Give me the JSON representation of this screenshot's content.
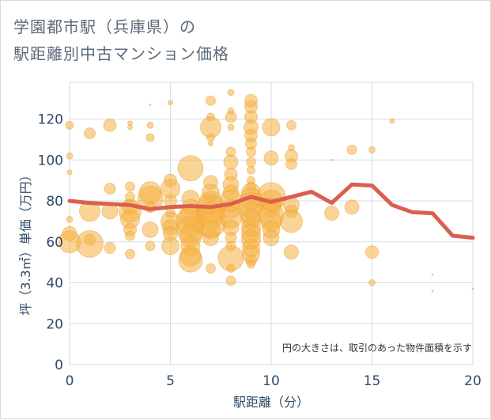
{
  "title": "学園都市駅（兵庫県）の\n駅距離別中古マンション価格",
  "colors": {
    "bubble_fill": "#f5b041",
    "bubble_stroke": "#e8a33a",
    "line": "#d9604f",
    "grid": "#d5dde6",
    "tick_text": "#2f4a66"
  },
  "chart_data": {
    "type": "scatter",
    "xlabel": "駅距離（分）",
    "ylabel": "坪（3.3㎡）単価（万円）",
    "xlim": [
      0,
      20
    ],
    "ylim": [
      0,
      138
    ],
    "xticks": [
      0,
      5,
      10,
      15,
      20
    ],
    "yticks": [
      0,
      20,
      40,
      60,
      80,
      100,
      120
    ],
    "grid": true,
    "note": "円の大きさは、取引のあった物件面積を示す",
    "bubbles": [
      {
        "x": 0,
        "y": 117,
        "r": 5
      },
      {
        "x": 0,
        "y": 102,
        "r": 4
      },
      {
        "x": 0,
        "y": 94,
        "r": 3
      },
      {
        "x": 0,
        "y": 71,
        "r": 4
      },
      {
        "x": 0,
        "y": 64,
        "r": 9
      },
      {
        "x": 0,
        "y": 60,
        "r": 14
      },
      {
        "x": 1,
        "y": 113,
        "r": 7
      },
      {
        "x": 1,
        "y": 75,
        "r": 13
      },
      {
        "x": 1,
        "y": 61,
        "r": 7
      },
      {
        "x": 1,
        "y": 59,
        "r": 17
      },
      {
        "x": 2,
        "y": 117,
        "r": 8
      },
      {
        "x": 2,
        "y": 86,
        "r": 7
      },
      {
        "x": 2,
        "y": 75,
        "r": 10
      },
      {
        "x": 2,
        "y": 57,
        "r": 7
      },
      {
        "x": 3,
        "y": 118,
        "r": 3
      },
      {
        "x": 3,
        "y": 116,
        "r": 3
      },
      {
        "x": 3,
        "y": 87,
        "r": 6
      },
      {
        "x": 3,
        "y": 82,
        "r": 6
      },
      {
        "x": 3,
        "y": 77,
        "r": 10
      },
      {
        "x": 3,
        "y": 75,
        "r": 14
      },
      {
        "x": 3,
        "y": 71,
        "r": 12
      },
      {
        "x": 3,
        "y": 66,
        "r": 8
      },
      {
        "x": 3,
        "y": 63,
        "r": 6
      },
      {
        "x": 3,
        "y": 54,
        "r": 6
      },
      {
        "x": 4,
        "y": 127,
        "r": 1
      },
      {
        "x": 4,
        "y": 117,
        "r": 4
      },
      {
        "x": 4,
        "y": 111,
        "r": 5
      },
      {
        "x": 4,
        "y": 84,
        "r": 14
      },
      {
        "x": 4,
        "y": 81,
        "r": 16
      },
      {
        "x": 4,
        "y": 77,
        "r": 7
      },
      {
        "x": 4,
        "y": 66,
        "r": 10
      },
      {
        "x": 4,
        "y": 58,
        "r": 6
      },
      {
        "x": 5,
        "y": 128,
        "r": 3
      },
      {
        "x": 5,
        "y": 90,
        "r": 8
      },
      {
        "x": 5,
        "y": 86,
        "r": 12
      },
      {
        "x": 5,
        "y": 80,
        "r": 8
      },
      {
        "x": 5,
        "y": 74,
        "r": 6
      },
      {
        "x": 5,
        "y": 70,
        "r": 12
      },
      {
        "x": 5,
        "y": 67,
        "r": 10
      },
      {
        "x": 5,
        "y": 64,
        "r": 9
      },
      {
        "x": 5,
        "y": 58,
        "r": 11
      },
      {
        "x": 6,
        "y": 96,
        "r": 16
      },
      {
        "x": 6,
        "y": 81,
        "r": 11
      },
      {
        "x": 6,
        "y": 77,
        "r": 10
      },
      {
        "x": 6,
        "y": 73,
        "r": 14
      },
      {
        "x": 6,
        "y": 70,
        "r": 18
      },
      {
        "x": 6,
        "y": 66,
        "r": 17
      },
      {
        "x": 6,
        "y": 63,
        "r": 14
      },
      {
        "x": 6,
        "y": 58,
        "r": 12
      },
      {
        "x": 6,
        "y": 53,
        "r": 13
      },
      {
        "x": 6,
        "y": 51,
        "r": 15
      },
      {
        "x": 7,
        "y": 129,
        "r": 6
      },
      {
        "x": 7,
        "y": 121,
        "r": 5
      },
      {
        "x": 7,
        "y": 116,
        "r": 13
      },
      {
        "x": 7,
        "y": 111,
        "r": 5
      },
      {
        "x": 7,
        "y": 108,
        "r": 3
      },
      {
        "x": 7,
        "y": 89,
        "r": 9
      },
      {
        "x": 7,
        "y": 84,
        "r": 11
      },
      {
        "x": 7,
        "y": 79,
        "r": 15
      },
      {
        "x": 7,
        "y": 76,
        "r": 18
      },
      {
        "x": 7,
        "y": 73,
        "r": 17
      },
      {
        "x": 7,
        "y": 70,
        "r": 20
      },
      {
        "x": 7,
        "y": 66,
        "r": 12
      },
      {
        "x": 7,
        "y": 62,
        "r": 10
      },
      {
        "x": 7,
        "y": 47,
        "r": 6
      },
      {
        "x": 8,
        "y": 133,
        "r": 4
      },
      {
        "x": 8,
        "y": 124,
        "r": 4
      },
      {
        "x": 8,
        "y": 121,
        "r": 7
      },
      {
        "x": 8,
        "y": 116,
        "r": 4
      },
      {
        "x": 8,
        "y": 104,
        "r": 6
      },
      {
        "x": 8,
        "y": 99,
        "r": 9
      },
      {
        "x": 8,
        "y": 93,
        "r": 8
      },
      {
        "x": 8,
        "y": 88,
        "r": 10
      },
      {
        "x": 8,
        "y": 84,
        "r": 10
      },
      {
        "x": 8,
        "y": 80,
        "r": 14
      },
      {
        "x": 8,
        "y": 76,
        "r": 12
      },
      {
        "x": 8,
        "y": 72,
        "r": 14
      },
      {
        "x": 8,
        "y": 67,
        "r": 10
      },
      {
        "x": 8,
        "y": 62,
        "r": 7
      },
      {
        "x": 8,
        "y": 58,
        "r": 6
      },
      {
        "x": 8,
        "y": 52,
        "r": 16
      },
      {
        "x": 8,
        "y": 47,
        "r": 5
      },
      {
        "x": 8,
        "y": 41,
        "r": 6
      },
      {
        "x": 9,
        "y": 129,
        "r": 8
      },
      {
        "x": 9,
        "y": 126,
        "r": 8
      },
      {
        "x": 9,
        "y": 121,
        "r": 8
      },
      {
        "x": 9,
        "y": 116,
        "r": 9
      },
      {
        "x": 9,
        "y": 112,
        "r": 8
      },
      {
        "x": 9,
        "y": 108,
        "r": 7
      },
      {
        "x": 9,
        "y": 104,
        "r": 6
      },
      {
        "x": 9,
        "y": 99,
        "r": 6
      },
      {
        "x": 9,
        "y": 95,
        "r": 5
      },
      {
        "x": 9,
        "y": 90,
        "r": 5
      },
      {
        "x": 9,
        "y": 87,
        "r": 6
      },
      {
        "x": 9,
        "y": 84,
        "r": 12
      },
      {
        "x": 9,
        "y": 81,
        "r": 14
      },
      {
        "x": 9,
        "y": 78,
        "r": 16
      },
      {
        "x": 9,
        "y": 74,
        "r": 14
      },
      {
        "x": 9,
        "y": 71,
        "r": 12
      },
      {
        "x": 9,
        "y": 67,
        "r": 12
      },
      {
        "x": 9,
        "y": 64,
        "r": 12
      },
      {
        "x": 9,
        "y": 61,
        "r": 12
      },
      {
        "x": 9,
        "y": 57,
        "r": 11
      },
      {
        "x": 9,
        "y": 54,
        "r": 11
      },
      {
        "x": 9,
        "y": 51,
        "r": 7
      },
      {
        "x": 9,
        "y": 49,
        "r": 5
      },
      {
        "x": 10,
        "y": 116,
        "r": 11
      },
      {
        "x": 10,
        "y": 101,
        "r": 9
      },
      {
        "x": 10,
        "y": 82,
        "r": 18
      },
      {
        "x": 10,
        "y": 80,
        "r": 14
      },
      {
        "x": 10,
        "y": 77,
        "r": 12
      },
      {
        "x": 10,
        "y": 73,
        "r": 16
      },
      {
        "x": 10,
        "y": 70,
        "r": 13
      },
      {
        "x": 10,
        "y": 66,
        "r": 11
      },
      {
        "x": 10,
        "y": 62,
        "r": 10
      },
      {
        "x": 11,
        "y": 117,
        "r": 6
      },
      {
        "x": 11,
        "y": 106,
        "r": 4
      },
      {
        "x": 11,
        "y": 102,
        "r": 8
      },
      {
        "x": 11,
        "y": 98,
        "r": 7
      },
      {
        "x": 11,
        "y": 78,
        "r": 10
      },
      {
        "x": 11,
        "y": 75,
        "r": 8
      },
      {
        "x": 11,
        "y": 70,
        "r": 14
      },
      {
        "x": 11,
        "y": 55,
        "r": 9
      },
      {
        "x": 13,
        "y": 100,
        "r": 1
      },
      {
        "x": 13,
        "y": 74,
        "r": 9
      },
      {
        "x": 14,
        "y": 105,
        "r": 6
      },
      {
        "x": 14,
        "y": 77,
        "r": 9
      },
      {
        "x": 15,
        "y": 105,
        "r": 4
      },
      {
        "x": 15,
        "y": 55,
        "r": 8
      },
      {
        "x": 15,
        "y": 40,
        "r": 4
      },
      {
        "x": 16,
        "y": 119,
        "r": 3
      },
      {
        "x": 18,
        "y": 44,
        "r": 1
      },
      {
        "x": 18,
        "y": 36,
        "r": 1
      },
      {
        "x": 20,
        "y": 37,
        "r": 1
      }
    ],
    "series": [
      {
        "x": [
          0,
          1,
          2,
          3,
          4,
          5,
          6,
          7,
          8,
          9,
          10,
          11,
          12,
          13,
          14,
          15,
          16,
          17,
          18,
          19,
          20
        ],
        "y": [
          80,
          79,
          78.5,
          78,
          76,
          77,
          77.5,
          77,
          78.5,
          82,
          79.5,
          82,
          84.5,
          79,
          88,
          87.5,
          78,
          74.5,
          74,
          63,
          62
        ]
      }
    ]
  }
}
